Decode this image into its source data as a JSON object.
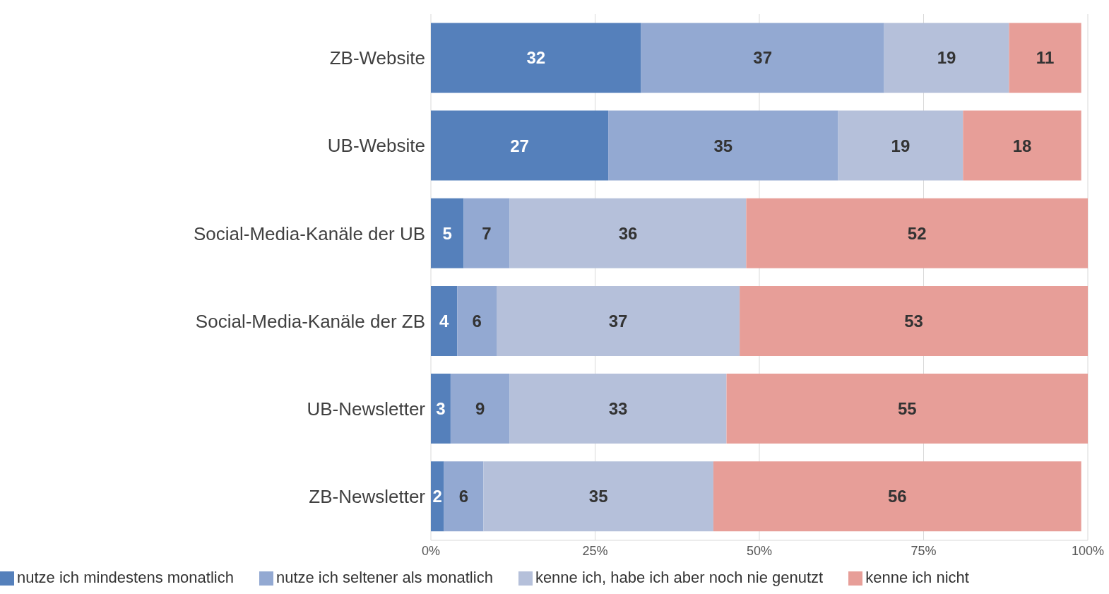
{
  "chart_data": {
    "type": "bar",
    "orientation": "horizontal",
    "stacked": true,
    "data_labels": true,
    "grid": "x",
    "legend": "bottom",
    "categories": [
      "ZB-Website",
      "UB-Website",
      "Social-Media-Kanäle der UB",
      "Social-Media-Kanäle der ZB",
      "UB-Newsletter",
      "ZB-Newsletter"
    ],
    "series": [
      {
        "name": "nutze ich mindestens monatlich",
        "color": "#5580bb",
        "values": [
          32,
          27,
          5,
          4,
          3,
          2
        ]
      },
      {
        "name": "nutze ich seltener als monatlich",
        "color": "#93a9d2",
        "values": [
          37,
          35,
          7,
          6,
          9,
          6
        ]
      },
      {
        "name": "kenne ich, habe ich aber noch nie genutzt",
        "color": "#b5c0da",
        "values": [
          19,
          19,
          36,
          37,
          33,
          35
        ]
      },
      {
        "name": "kenne ich nicht",
        "color": "#e79e98",
        "values": [
          11,
          18,
          52,
          53,
          55,
          56
        ]
      }
    ],
    "xlim": [
      0,
      100
    ],
    "xticks": [
      {
        "value": 0,
        "label": "0%"
      },
      {
        "value": 25,
        "label": "25%"
      },
      {
        "value": 50,
        "label": "50%"
      },
      {
        "value": 75,
        "label": "75%"
      },
      {
        "value": 100,
        "label": "100%"
      }
    ]
  }
}
